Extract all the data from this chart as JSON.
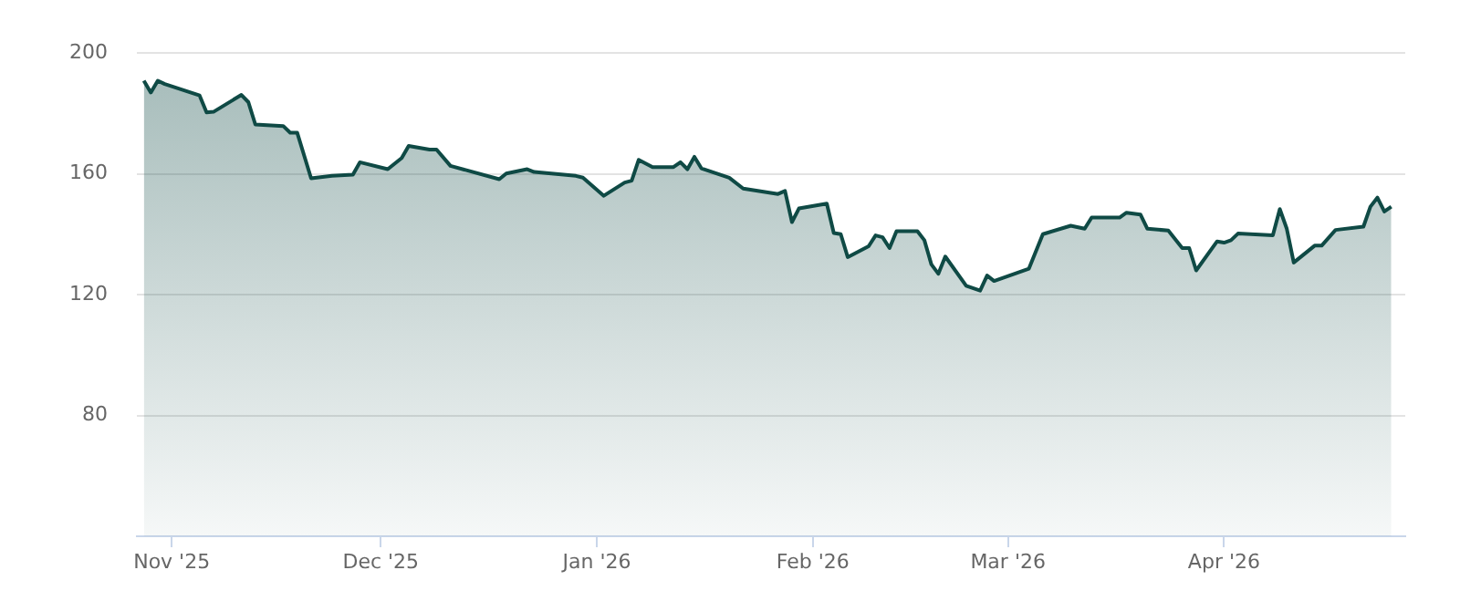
{
  "chart_data": {
    "type": "area",
    "x": [
      "2025-10-28",
      "2025-10-29",
      "2025-10-30",
      "2025-10-31",
      "2025-11-05",
      "2025-11-06",
      "2025-11-07",
      "2025-11-11",
      "2025-11-12",
      "2025-11-13",
      "2025-11-17",
      "2025-11-18",
      "2025-11-19",
      "2025-11-21",
      "2025-11-24",
      "2025-11-27",
      "2025-11-28",
      "2025-12-02",
      "2025-12-04",
      "2025-12-05",
      "2025-12-08",
      "2025-12-09",
      "2025-12-11",
      "2025-12-18",
      "2025-12-19",
      "2025-12-22",
      "2025-12-23",
      "2025-12-29",
      "2025-12-30",
      "2026-01-02",
      "2026-01-05",
      "2026-01-06",
      "2026-01-07",
      "2026-01-09",
      "2026-01-12",
      "2026-01-13",
      "2026-01-14",
      "2026-01-15",
      "2026-01-16",
      "2026-01-20",
      "2026-01-22",
      "2026-01-27",
      "2026-01-28",
      "2026-01-29",
      "2026-01-30",
      "2026-02-03",
      "2026-02-04",
      "2026-02-05",
      "2026-02-06",
      "2026-02-09",
      "2026-02-10",
      "2026-02-11",
      "2026-02-12",
      "2026-02-13",
      "2026-02-16",
      "2026-02-17",
      "2026-02-18",
      "2026-02-19",
      "2026-02-20",
      "2026-02-23",
      "2026-02-25",
      "2026-02-26",
      "2026-02-27",
      "2026-03-04",
      "2026-03-06",
      "2026-03-10",
      "2026-03-12",
      "2026-03-13",
      "2026-03-17",
      "2026-03-18",
      "2026-03-20",
      "2026-03-21",
      "2026-03-24",
      "2026-03-26",
      "2026-03-27",
      "2026-03-28",
      "2026-03-31",
      "2026-04-01",
      "2026-04-02",
      "2026-04-03",
      "2026-04-08",
      "2026-04-09",
      "2026-04-10",
      "2026-04-11",
      "2026-04-14",
      "2026-04-15",
      "2026-04-17",
      "2026-04-21",
      "2026-04-22",
      "2026-04-23",
      "2026-04-24",
      "2026-04-25"
    ],
    "series": [
      {
        "color": "#0f4a45",
        "values": [
          190.8,
          186.9,
          190.8,
          189.7,
          185.9,
          180.3,
          180.5,
          186.1,
          183.7,
          176.3,
          175.8,
          173.6,
          173.6,
          158.5,
          159.3,
          159.7,
          163.8,
          161.5,
          165.2,
          169.2,
          168,
          168,
          162.6,
          158.2,
          160.1,
          161.5,
          160.6,
          159.3,
          158.7,
          152.7,
          157.1,
          157.7,
          164.6,
          162.2,
          162.2,
          163.8,
          161.5,
          165.6,
          161.8,
          158.7,
          155.1,
          153.3,
          154.3,
          144,
          148.5,
          150.1,
          140.4,
          140,
          132.4,
          136,
          139.6,
          139,
          135.4,
          141,
          141,
          138,
          130,
          126.9,
          132.6,
          122.9,
          121.3,
          126.3,
          124.5,
          128.6,
          140,
          142.8,
          141.8,
          145.5,
          145.5,
          147.1,
          146.5,
          141.8,
          141.2,
          135.4,
          135.4,
          128,
          137.6,
          137.2,
          138,
          140.2,
          139.6,
          148.3,
          141.8,
          130.6,
          136.2,
          136.2,
          141.4,
          142.5,
          149.1,
          152.1,
          147.5,
          149.1
        ]
      }
    ],
    "xlim": [
      "2025-10-27",
      "2026-04-27"
    ],
    "xticks": [
      {
        "value": "2025-11-01",
        "label": "Nov '25"
      },
      {
        "value": "2025-12-01",
        "label": "Dec '25"
      },
      {
        "value": "2026-01-01",
        "label": "Jan '26"
      },
      {
        "value": "2026-02-01",
        "label": "Feb '26"
      },
      {
        "value": "2026-03-01",
        "label": "Mar '26"
      },
      {
        "value": "2026-04-01",
        "label": "Apr '26"
      }
    ],
    "ylim": [
      40,
      200
    ],
    "yticks": [
      80,
      120,
      160,
      200
    ],
    "grid": "y",
    "legend": false,
    "marker": "none",
    "line_style": "solid"
  }
}
